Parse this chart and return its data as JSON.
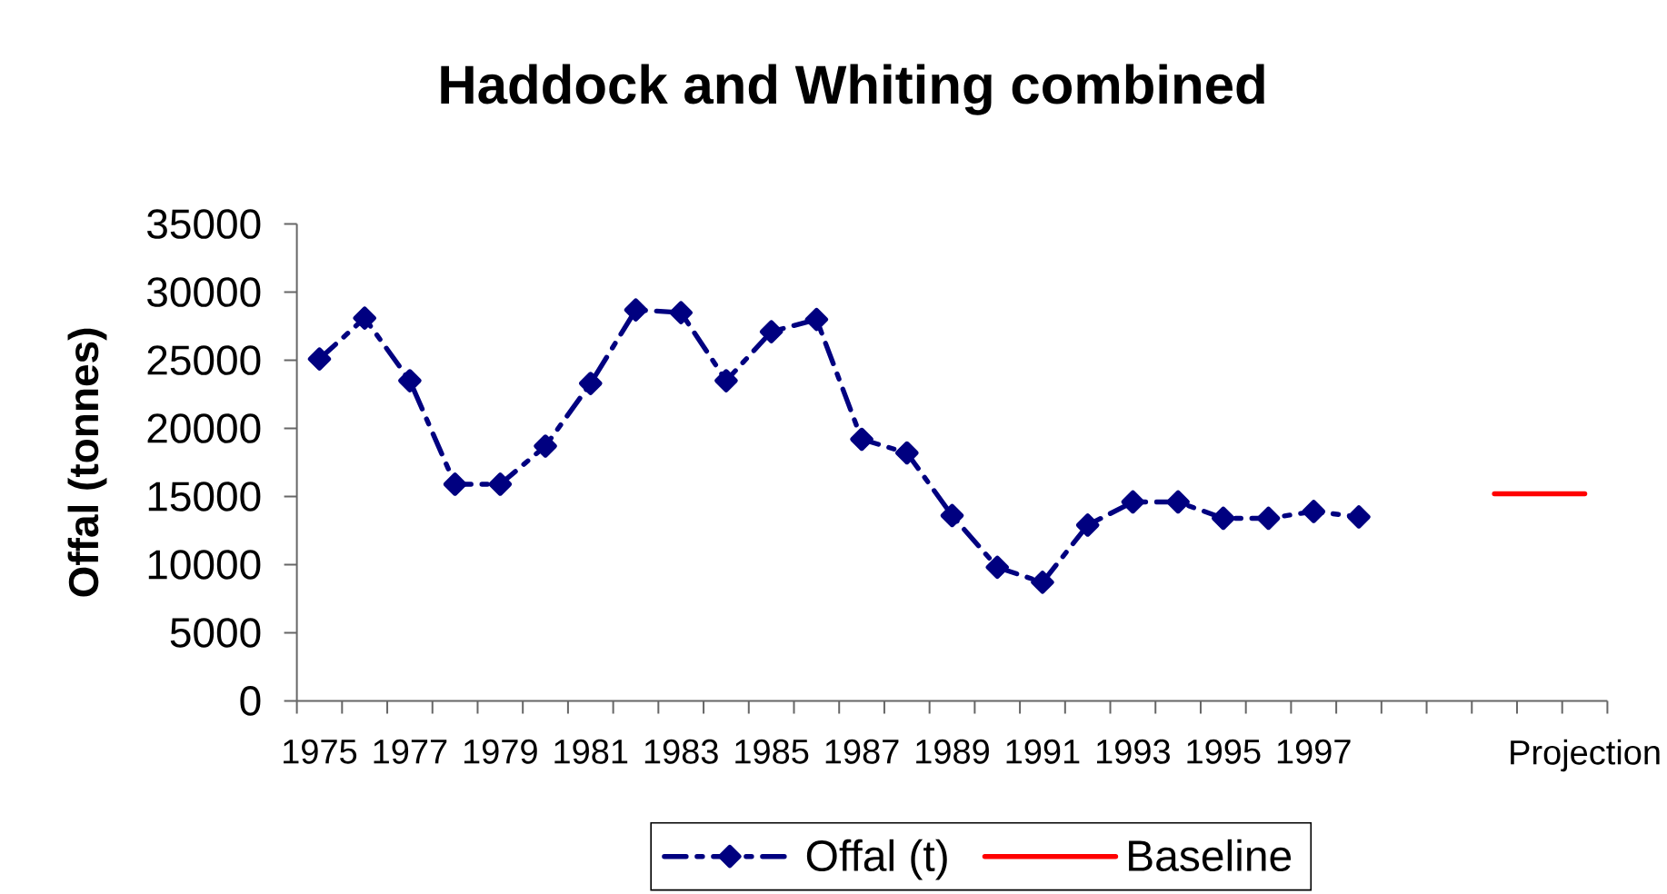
{
  "chart_data": {
    "type": "line",
    "title": "Haddock and Whiting combined",
    "ylabel": "Offal (tonnes)",
    "categories": [
      "1975",
      null,
      "1977",
      null,
      "1979",
      null,
      "1981",
      null,
      "1983",
      null,
      "1985",
      null,
      "1987",
      null,
      "1989",
      null,
      "1991",
      null,
      "1993",
      null,
      "1995",
      null,
      "1997",
      null,
      null,
      null,
      null,
      null,
      "Projection"
    ],
    "ylim": [
      0,
      35000
    ],
    "yticks": [
      0,
      5000,
      10000,
      15000,
      20000,
      25000,
      30000,
      35000
    ],
    "legend": "bottom",
    "series": [
      {
        "name": "Offal (t)",
        "color": "#000080",
        "marker": "diamond",
        "line_style": "dashed",
        "values": [
          25100,
          28100,
          23500,
          15900,
          15900,
          18700,
          23300,
          28700,
          28500,
          23500,
          27100,
          28000,
          19200,
          18200,
          13600,
          9800,
          8700,
          12900,
          14600,
          14600,
          13400,
          13400,
          13900,
          13500,
          null,
          null,
          null,
          null,
          null
        ]
      },
      {
        "name": "Baseline",
        "color": "#ff0000",
        "marker": "none",
        "line_style": "solid",
        "values": [
          null,
          null,
          null,
          null,
          null,
          null,
          null,
          null,
          null,
          null,
          null,
          null,
          null,
          null,
          null,
          null,
          null,
          null,
          null,
          null,
          null,
          null,
          null,
          null,
          null,
          null,
          15200,
          15200,
          15200
        ]
      }
    ]
  }
}
